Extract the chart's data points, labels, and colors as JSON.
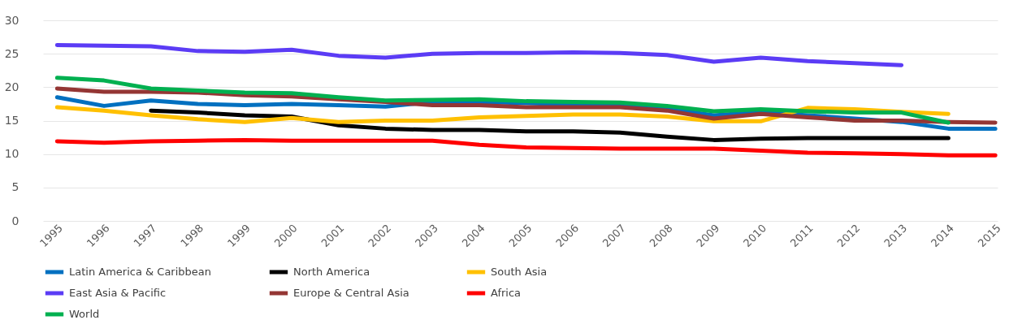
{
  "chart_data": {
    "type": "line",
    "categories": [
      "1995",
      "1996",
      "1997",
      "1998",
      "1999",
      "2000",
      "2001",
      "2002",
      "2003",
      "2004",
      "2005",
      "2006",
      "2007",
      "2008",
      "2009",
      "2010",
      "2011",
      "2012",
      "2013",
      "2014",
      "2015"
    ],
    "series": [
      {
        "name": "Latin America & Caribbean",
        "color": "#0070c0",
        "values": [
          18.5,
          17.2,
          18.0,
          17.5,
          17.3,
          17.5,
          17.3,
          17.1,
          17.8,
          17.8,
          17.6,
          17.4,
          17.2,
          16.8,
          15.8,
          16.3,
          15.8,
          15.3,
          14.8,
          13.8,
          13.8
        ]
      },
      {
        "name": "North America",
        "color": "#000000",
        "values": [
          null,
          null,
          16.5,
          16.2,
          15.8,
          15.6,
          14.3,
          13.8,
          13.6,
          13.6,
          13.4,
          13.4,
          13.2,
          12.6,
          12.1,
          12.3,
          12.4,
          12.4,
          12.4,
          12.4,
          null
        ]
      },
      {
        "name": "South Asia",
        "color": "#ffc000",
        "values": [
          17.0,
          16.5,
          15.8,
          15.2,
          14.8,
          15.4,
          14.8,
          15.0,
          15.0,
          15.5,
          15.7,
          15.9,
          15.9,
          15.6,
          14.9,
          14.9,
          16.9,
          16.7,
          16.3,
          16.0,
          null
        ]
      },
      {
        "name": "East Asia & Pacific",
        "color": "#5b3cf5",
        "values": [
          26.3,
          26.2,
          26.1,
          25.4,
          25.3,
          25.6,
          24.7,
          24.4,
          25.0,
          25.1,
          25.1,
          25.2,
          25.1,
          24.8,
          23.8,
          24.4,
          23.9,
          23.6,
          23.3,
          null,
          null
        ]
      },
      {
        "name": "Europe & Central Asia",
        "color": "#943634",
        "values": [
          19.8,
          19.3,
          19.3,
          19.2,
          18.8,
          18.6,
          18.2,
          17.8,
          17.3,
          17.3,
          17.0,
          17.0,
          17.0,
          16.5,
          15.3,
          16.0,
          15.5,
          15.0,
          15.0,
          14.8,
          14.7
        ]
      },
      {
        "name": "Africa",
        "color": "#ff0000",
        "values": [
          11.9,
          11.7,
          11.9,
          12.0,
          12.1,
          12.0,
          12.0,
          12.0,
          12.0,
          11.4,
          11.0,
          10.9,
          10.8,
          10.8,
          10.8,
          10.5,
          10.2,
          10.1,
          10.0,
          9.8,
          9.8
        ]
      },
      {
        "name": "World",
        "color": "#00b050",
        "values": [
          21.4,
          21.0,
          19.8,
          19.5,
          19.2,
          19.1,
          18.5,
          18.0,
          18.1,
          18.2,
          17.9,
          17.8,
          17.7,
          17.2,
          16.4,
          16.7,
          16.4,
          16.2,
          16.2,
          14.7,
          null
        ]
      }
    ],
    "ylim": [
      0,
      30
    ],
    "yticks": [
      0,
      5,
      10,
      15,
      20,
      25,
      30
    ],
    "grid": "y",
    "legend": "bottom",
    "line_style": "solid",
    "marker": "none"
  }
}
